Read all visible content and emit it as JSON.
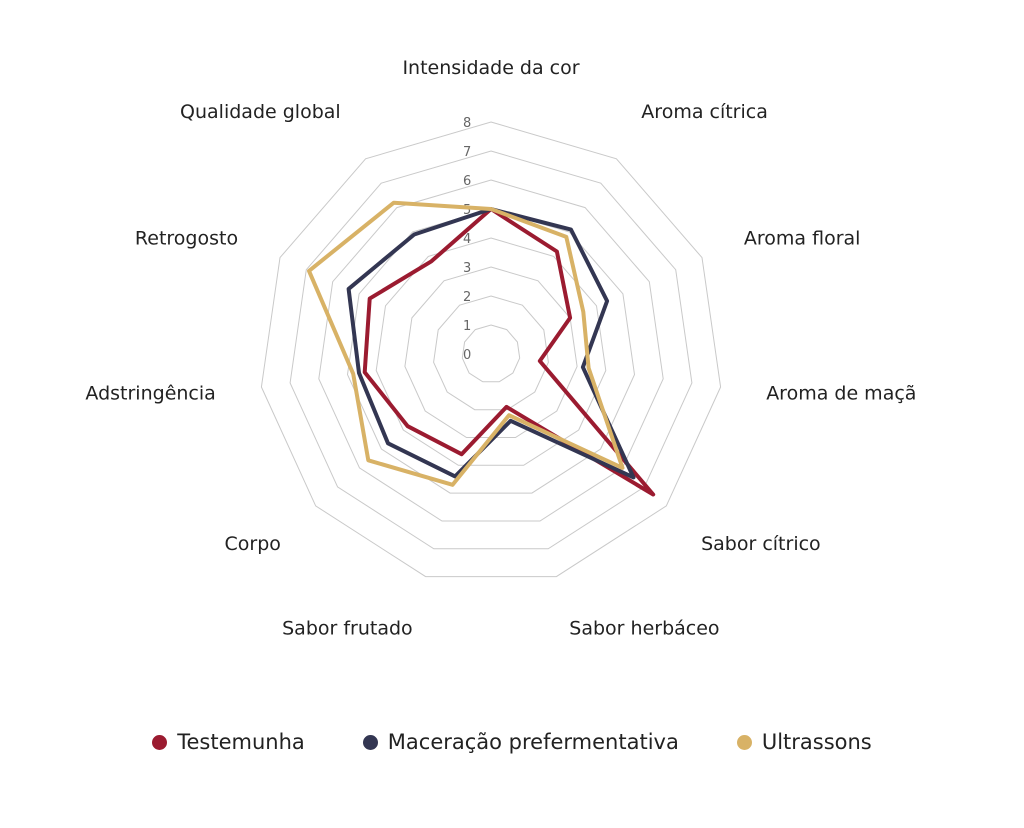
{
  "chart_data": {
    "type": "radar",
    "title": "",
    "categories": [
      "Intensidade da cor",
      "Aroma cítrica",
      "Aroma floral",
      "Aroma de maçã",
      "Sabor cítrico",
      "Sabor herbáceo",
      "Sabor frutado",
      "Corpo",
      "Adstringência",
      "Retrogosto",
      "Qualidade global"
    ],
    "ticks": [
      "0",
      "1",
      "2",
      "3",
      "4",
      "5",
      "6",
      "7",
      "8"
    ],
    "rlim": [
      0,
      8
    ],
    "legend_position": "bottom",
    "series": [
      {
        "name": "Testemunha",
        "color": "#9b1b30",
        "values": [
          5.0,
          4.2,
          3.0,
          1.7,
          7.4,
          1.9,
          3.6,
          3.8,
          4.4,
          4.6,
          3.8
        ]
      },
      {
        "name": "Maceração prefermentativa",
        "color": "#333652",
        "values": [
          5.0,
          5.1,
          4.4,
          3.2,
          6.5,
          2.4,
          4.4,
          4.7,
          4.6,
          5.4,
          4.9
        ]
      },
      {
        "name": "Ultrassons",
        "color": "#d8b266",
        "values": [
          5.0,
          4.8,
          3.5,
          3.4,
          6.0,
          2.2,
          4.7,
          5.6,
          4.8,
          6.9,
          6.2
        ]
      }
    ]
  }
}
